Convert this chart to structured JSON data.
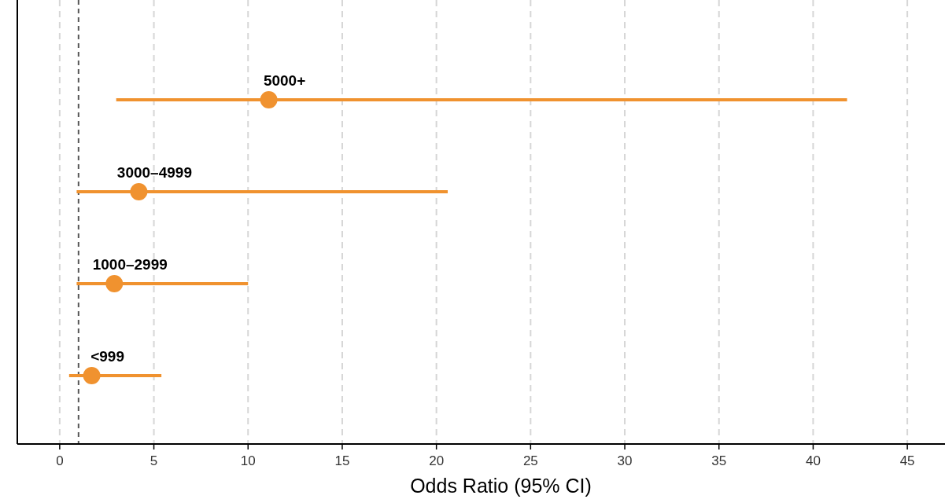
{
  "chart_data": {
    "type": "scatter",
    "orientation": "horizontal",
    "xlabel": "Odds Ratio (95% CI)",
    "categories": [
      "5000+",
      "3000–4999",
      "1000–2999",
      "<999"
    ],
    "values": [
      11.1,
      4.2,
      2.9,
      1.7
    ],
    "errors": [
      [
        3.0,
        41.8
      ],
      [
        0.9,
        20.6
      ],
      [
        0.9,
        10.0
      ],
      [
        0.5,
        5.4
      ]
    ],
    "color": "#f0922f",
    "marker": "circle",
    "xlim": [
      -2.25,
      47
    ],
    "xticks": [
      0,
      5,
      10,
      15,
      20,
      25,
      30,
      35,
      40,
      45
    ],
    "ref_lines": [
      {
        "axis": "x",
        "value": 1,
        "color": "#555555",
        "line_style": "dashed"
      }
    ],
    "grid": "x",
    "tick_labels": "x"
  }
}
